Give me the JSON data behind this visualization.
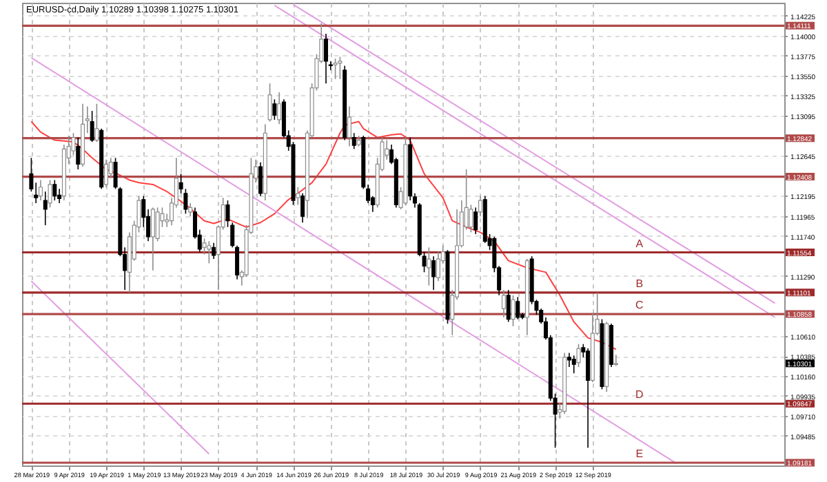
{
  "chart_data": {
    "type": "candlestick",
    "title": "EURUSD-cd,Daily 1.10289 1.10398 1.10275 1.10301",
    "categories": [
      "28 Mar 2019",
      null,
      null,
      null,
      null,
      null,
      null,
      null,
      "9 Apr 2019",
      null,
      null,
      null,
      null,
      null,
      null,
      null,
      "19 Apr 2019",
      null,
      null,
      null,
      null,
      null,
      null,
      null,
      "1 May 2019",
      null,
      null,
      null,
      null,
      null,
      null,
      null,
      "13 May 2019",
      null,
      null,
      null,
      null,
      null,
      null,
      null,
      "23 May 2019",
      null,
      null,
      null,
      null,
      null,
      null,
      null,
      "4 Jun 2019",
      null,
      null,
      null,
      null,
      null,
      null,
      null,
      "14 Jun 2019",
      null,
      null,
      null,
      null,
      null,
      null,
      null,
      "26 Jun 2019",
      null,
      null,
      null,
      null,
      null,
      null,
      null,
      "8 Jul 2019",
      null,
      null,
      null,
      null,
      null,
      null,
      null,
      "18 Jul 2019",
      null,
      null,
      null,
      null,
      null,
      null,
      null,
      "30 Jul 2019",
      null,
      null,
      null,
      null,
      null,
      null,
      null,
      "9 Aug 2019",
      null,
      null,
      null,
      null,
      null,
      null,
      null,
      "21 Aug 2019",
      null,
      null,
      null,
      null,
      null,
      null,
      null,
      "2 Sep 2019",
      null,
      null,
      null,
      null,
      null,
      null,
      null,
      "12 Sep 2019",
      null,
      null,
      null,
      null,
      null,
      null,
      null,
      null,
      null,
      null,
      null,
      null,
      null,
      null,
      null,
      null,
      null,
      null,
      null,
      null,
      null,
      null,
      null,
      null,
      null,
      null,
      null,
      null,
      null,
      null,
      null,
      null,
      null,
      null,
      null,
      null,
      null,
      null,
      null
    ],
    "ohlc": [
      [
        1.1244,
        1.1262,
        1.1224,
        1.1227
      ],
      [
        1.122,
        1.1234,
        1.1211,
        1.1217
      ],
      [
        1.1219,
        1.1237,
        1.1214,
        1.1229
      ],
      [
        1.1214,
        1.1224,
        1.1186,
        1.1204
      ],
      [
        1.1211,
        1.1237,
        1.1206,
        1.1232
      ],
      [
        1.1232,
        1.1237,
        1.1214,
        1.1219
      ],
      [
        1.122,
        1.1227,
        1.1211,
        1.1216
      ],
      [
        1.1219,
        1.1277,
        1.1214,
        1.1272
      ],
      [
        1.1262,
        1.1287,
        1.1255,
        1.1275
      ],
      [
        1.127,
        1.129,
        1.1265,
        1.1285
      ],
      [
        1.1275,
        1.1285,
        1.1249,
        1.1255
      ],
      [
        1.1255,
        1.1323,
        1.1252,
        1.13
      ],
      [
        1.1304,
        1.132,
        1.129,
        1.1306
      ],
      [
        1.1303,
        1.1315,
        1.128,
        1.1282
      ],
      [
        1.1282,
        1.1323,
        1.128,
        1.1295
      ],
      [
        1.1293,
        1.1295,
        1.1227,
        1.1229
      ],
      [
        1.1232,
        1.126,
        1.1229,
        1.1255
      ],
      [
        1.1244,
        1.1262,
        1.1239,
        1.1257
      ],
      [
        1.1257,
        1.1262,
        1.1227,
        1.1229
      ],
      [
        1.1227,
        1.1229,
        1.1151,
        1.1153
      ],
      [
        1.1153,
        1.1161,
        1.1113,
        1.1135
      ],
      [
        1.1133,
        1.1178,
        1.111,
        1.1173
      ],
      [
        1.1148,
        1.1191,
        1.1146,
        1.1186
      ],
      [
        1.1184,
        1.1219,
        1.1178,
        1.1214
      ],
      [
        1.1215,
        1.1219,
        1.1184,
        1.1195
      ],
      [
        1.1196,
        1.1204,
        1.1168,
        1.1173
      ],
      [
        1.1173,
        1.1206,
        1.1135,
        1.1204
      ],
      [
        1.1171,
        1.1206,
        1.1168,
        1.1201
      ],
      [
        1.1191,
        1.1206,
        1.1184,
        1.1199
      ],
      [
        1.119,
        1.1199,
        1.1184,
        1.1192
      ],
      [
        1.1191,
        1.1217,
        1.1186,
        1.1211
      ],
      [
        1.1209,
        1.1262,
        1.1206,
        1.1239
      ],
      [
        1.1234,
        1.1244,
        1.1222,
        1.1227
      ],
      [
        1.1222,
        1.1227,
        1.1199,
        1.1204
      ],
      [
        1.1201,
        1.1211,
        1.1196,
        1.1206
      ],
      [
        1.1201,
        1.1206,
        1.1171,
        1.1173
      ],
      [
        1.1175,
        1.1181,
        1.1156,
        1.1159
      ],
      [
        1.1161,
        1.1171,
        1.1153,
        1.1166
      ],
      [
        1.1159,
        1.1168,
        1.1143,
        1.1163
      ],
      [
        1.1161,
        1.1166,
        1.1148,
        1.1152
      ],
      [
        1.1153,
        1.1186,
        1.1113,
        1.1184
      ],
      [
        1.1184,
        1.1217,
        1.1181,
        1.1209
      ],
      [
        1.1209,
        1.1214,
        1.1184,
        1.1191
      ],
      [
        1.1186,
        1.1189,
        1.1161,
        1.1163
      ],
      [
        1.1161,
        1.1163,
        1.1125,
        1.113
      ],
      [
        1.1128,
        1.1135,
        1.1118,
        1.1133
      ],
      [
        1.113,
        1.1186,
        1.1128,
        1.1181
      ],
      [
        1.1178,
        1.1262,
        1.1176,
        1.1244
      ],
      [
        1.1239,
        1.126,
        1.1234,
        1.1252
      ],
      [
        1.1252,
        1.1257,
        1.1219,
        1.1222
      ],
      [
        1.1222,
        1.13,
        1.1214,
        1.129
      ],
      [
        1.1305,
        1.1346,
        1.1303,
        1.1333
      ],
      [
        1.1323,
        1.1328,
        1.1305,
        1.131
      ],
      [
        1.1305,
        1.1336,
        1.13,
        1.1323
      ],
      [
        1.1325,
        1.1328,
        1.1285,
        1.1287
      ],
      [
        1.1287,
        1.1293,
        1.127,
        1.1275
      ],
      [
        1.1277,
        1.128,
        1.1209,
        1.1214
      ],
      [
        1.1217,
        1.1229,
        1.1209,
        1.1222
      ],
      [
        1.1219,
        1.1222,
        1.1189,
        1.1196
      ],
      [
        1.1214,
        1.1293,
        1.1194,
        1.129
      ],
      [
        1.1287,
        1.1346,
        1.1285,
        1.1341
      ],
      [
        1.1341,
        1.1379,
        1.1338,
        1.1374
      ],
      [
        1.1371,
        1.1414,
        1.1369,
        1.1396
      ],
      [
        1.1396,
        1.1402,
        1.1346,
        1.1371
      ],
      [
        1.1367,
        1.1371,
        1.1361,
        1.1366
      ],
      [
        1.1367,
        1.1374,
        1.1351,
        1.1369
      ],
      [
        1.1369,
        1.1376,
        1.1351,
        1.1371
      ],
      [
        1.1361,
        1.1366,
        1.1282,
        1.1285
      ],
      [
        1.1285,
        1.132,
        1.1275,
        1.1308
      ],
      [
        1.1285,
        1.129,
        1.1272,
        1.1276
      ],
      [
        1.1277,
        1.1287,
        1.1275,
        1.1282
      ],
      [
        1.1285,
        1.1287,
        1.1227,
        1.1229
      ],
      [
        1.1227,
        1.1232,
        1.1211,
        1.1214
      ],
      [
        1.1217,
        1.1219,
        1.1201,
        1.1209
      ],
      [
        1.1209,
        1.1262,
        1.1206,
        1.1255
      ],
      [
        1.1249,
        1.1285,
        1.1247,
        1.128
      ],
      [
        1.1265,
        1.1282,
        1.126,
        1.1272
      ],
      [
        1.1271,
        1.1277,
        1.1255,
        1.1257
      ],
      [
        1.126,
        1.1262,
        1.1206,
        1.1209
      ],
      [
        1.1206,
        1.1229,
        1.1204,
        1.1224
      ],
      [
        1.1211,
        1.1285,
        1.1209,
        1.1277
      ],
      [
        1.1277,
        1.1285,
        1.1214,
        1.1219
      ],
      [
        1.1218,
        1.1222,
        1.1206,
        1.1211
      ],
      [
        1.1209,
        1.1211,
        1.1151,
        1.1153
      ],
      [
        1.1151,
        1.1156,
        1.1133,
        1.114
      ],
      [
        1.1138,
        1.1161,
        1.1118,
        1.1148
      ],
      [
        1.1146,
        1.1151,
        1.1113,
        1.1128
      ],
      [
        1.1127,
        1.1156,
        1.1123,
        1.1148
      ],
      [
        1.1146,
        1.1163,
        1.1143,
        1.1156
      ],
      [
        1.1156,
        1.1158,
        1.1075,
        1.108
      ],
      [
        1.108,
        1.1113,
        1.1062,
        1.1107
      ],
      [
        1.1105,
        1.1204,
        1.1102,
        1.1163
      ],
      [
        1.1163,
        1.1214,
        1.1161,
        1.1201
      ],
      [
        1.1184,
        1.1249,
        1.1181,
        1.1206
      ],
      [
        1.1184,
        1.1209,
        1.1178,
        1.1204
      ],
      [
        1.1201,
        1.1206,
        1.1176,
        1.1181
      ],
      [
        1.1201,
        1.1219,
        1.1196,
        1.1214
      ],
      [
        1.1215,
        1.1219,
        1.1166,
        1.1168
      ],
      [
        1.1171,
        1.1176,
        1.1158,
        1.1163
      ],
      [
        1.1171,
        1.1173,
        1.1133,
        1.1138
      ],
      [
        1.1138,
        1.114,
        1.1107,
        1.1113
      ],
      [
        1.1092,
        1.1113,
        1.1082,
        1.1107
      ],
      [
        1.1107,
        1.1113,
        1.1077,
        1.108
      ],
      [
        1.108,
        1.1107,
        1.1072,
        1.1102
      ],
      [
        1.11,
        1.1105,
        1.108,
        1.1082
      ],
      [
        1.1085,
        1.1087,
        1.108,
        1.1082
      ],
      [
        1.1082,
        1.1148,
        1.1062,
        1.1146
      ],
      [
        1.1148,
        1.1151,
        1.1097,
        1.11
      ],
      [
        1.11,
        1.1102,
        1.1085,
        1.109
      ],
      [
        1.109,
        1.1092,
        1.1075,
        1.1077
      ],
      [
        1.1077,
        1.1082,
        1.1057,
        1.1059
      ],
      [
        1.1059,
        1.1062,
        1.0988,
        1.0991
      ],
      [
        1.0991,
        1.0996,
        1.0935,
        1.0973
      ],
      [
        1.0975,
        1.0986,
        1.0968,
        1.0978
      ],
      [
        1.0976,
        1.1042,
        1.0973,
        1.1037
      ],
      [
        1.1037,
        1.1042,
        1.1026,
        1.1034
      ],
      [
        1.1035,
        1.1039,
        1.1019,
        1.1029
      ],
      [
        1.1031,
        1.1052,
        1.1026,
        1.1047
      ],
      [
        1.1048,
        1.1052,
        1.1037,
        1.1043
      ],
      [
        1.1044,
        1.1047,
        1.0935,
        1.1011
      ],
      [
        1.1011,
        1.1087,
        1.1009,
        1.1064
      ],
      [
        1.1064,
        1.111,
        1.1062,
        1.108
      ],
      [
        1.1075,
        1.108,
        1.1001,
        1.1004
      ],
      [
        1.1004,
        1.1077,
        1.0998,
        1.1075
      ],
      [
        1.1073,
        1.1075,
        1.1026,
        1.1029
      ],
      [
        1.10289,
        1.10398,
        1.10275,
        1.10301
      ],
      null,
      null,
      null,
      null,
      null,
      null,
      null,
      null,
      null,
      null,
      null,
      null,
      null,
      null,
      null,
      null,
      null,
      null,
      null,
      null,
      null,
      null,
      null,
      null,
      null,
      null,
      null,
      null,
      null,
      null,
      null,
      null,
      null,
      null
    ],
    "series": [
      {
        "type": "line",
        "color": "#ff4040",
        "values": [
          1.1303,
          null,
          1.1291,
          null,
          null,
          1.1282,
          null,
          null,
          null,
          1.128,
          null,
          1.1272,
          null,
          1.1262,
          null,
          null,
          1.1249,
          null,
          1.1245,
          null,
          null,
          1.1237,
          null,
          1.1234,
          null,
          null,
          1.1232,
          null,
          null,
          1.1224,
          null,
          null,
          1.1213,
          null,
          1.1205,
          null,
          null,
          1.1191,
          null,
          1.1188,
          null,
          null,
          1.1193,
          null,
          null,
          1.1186,
          1.1184,
          null,
          null,
          1.1189,
          null,
          null,
          1.1199,
          null,
          null,
          1.1215,
          null,
          1.1222,
          null,
          null,
          1.1234,
          null,
          null,
          1.1255,
          null,
          null,
          1.129,
          1.1299,
          null,
          null,
          1.1303,
          1.1295,
          null,
          null,
          1.1285,
          null,
          null,
          1.1288,
          null,
          1.1289,
          null,
          1.1282,
          null,
          null,
          1.1244,
          null,
          null,
          null,
          1.1217,
          null,
          1.1191,
          null,
          null,
          1.1184,
          null,
          null,
          1.1178,
          null,
          null,
          1.1168,
          null,
          null,
          1.1146,
          null,
          null,
          null,
          1.1138,
          null,
          null,
          null,
          1.1133,
          null,
          null,
          1.1107,
          null,
          null,
          1.1077,
          null,
          null,
          1.1059,
          null,
          null,
          1.1054,
          null,
          null,
          1.1046,
          null,
          null,
          null,
          null,
          null,
          null,
          null,
          null,
          null,
          null,
          null,
          null,
          null,
          null,
          null,
          null,
          null,
          null,
          null,
          null,
          null,
          null,
          null,
          null,
          null,
          null,
          null,
          null,
          null,
          null,
          null,
          null,
          null,
          null
        ]
      },
      {
        "type": "line",
        "color": "#e29ee2",
        "values": [
          null,
          null,
          null,
          null,
          null,
          null,
          null,
          null,
          null,
          null,
          null,
          null,
          null,
          null,
          null,
          null,
          null,
          null,
          null,
          null,
          null,
          null,
          null,
          null,
          null,
          null,
          null,
          null,
          null,
          null,
          null,
          null,
          null,
          null,
          null,
          null,
          null,
          null,
          null,
          null,
          null,
          null,
          null,
          null,
          null,
          null,
          null,
          null,
          null,
          null,
          null,
          null,
          1.1434,
          null,
          null,
          null,
          null,
          null,
          null,
          null,
          null,
          null,
          null,
          null,
          null,
          null,
          null,
          null,
          null,
          null,
          null,
          null,
          null,
          null,
          null,
          null,
          null,
          null,
          null,
          null,
          null,
          null,
          null,
          null,
          null,
          null,
          null,
          null,
          null,
          null,
          null,
          null,
          null,
          null,
          null,
          null,
          null,
          null,
          null,
          null,
          null,
          null,
          null,
          null,
          null,
          null,
          null,
          null,
          null,
          null,
          null,
          null,
          null,
          null,
          null,
          null,
          null,
          null,
          null,
          null,
          null,
          null,
          null,
          null,
          null,
          null,
          null,
          null,
          null,
          null,
          null,
          null,
          null,
          null,
          null,
          null,
          null,
          null,
          null,
          null,
          null,
          null,
          null,
          null,
          null,
          null,
          null,
          null,
          null,
          null,
          null,
          null,
          null,
          null,
          null,
          null,
          null,
          null,
          null,
          1.1082
        ]
      },
      {
        "type": "line",
        "color": "#e29ee2",
        "values": [
          null,
          null,
          null,
          null,
          null,
          null,
          null,
          null,
          null,
          null,
          null,
          null,
          null,
          null,
          null,
          null,
          null,
          null,
          null,
          null,
          null,
          null,
          null,
          null,
          null,
          null,
          null,
          null,
          null,
          null,
          null,
          null,
          null,
          null,
          null,
          null,
          null,
          null,
          null,
          null,
          null,
          null,
          null,
          null,
          null,
          null,
          null,
          null,
          null,
          null,
          null,
          null,
          null,
          null,
          null,
          null,
          1.1435,
          null,
          null,
          null,
          null,
          null,
          null,
          null,
          null,
          null,
          null,
          null,
          null,
          null,
          null,
          null,
          null,
          null,
          null,
          null,
          null,
          null,
          null,
          null,
          null,
          null,
          null,
          null,
          null,
          null,
          null,
          null,
          null,
          null,
          null,
          null,
          null,
          null,
          null,
          null,
          null,
          null,
          null,
          null,
          null,
          null,
          null,
          null,
          null,
          null,
          null,
          null,
          null,
          null,
          null,
          null,
          null,
          null,
          null,
          null,
          null,
          null,
          null,
          null,
          null,
          null,
          null,
          null,
          null,
          null,
          null,
          null,
          null,
          null,
          null,
          null,
          null,
          null,
          null,
          null,
          null,
          null,
          null,
          null,
          null,
          null,
          null,
          null,
          null,
          null,
          null,
          null,
          null,
          null,
          null,
          null,
          null,
          null,
          null,
          null,
          null,
          null,
          null,
          1.1098
        ]
      },
      {
        "type": "line",
        "color": "#e29ee2",
        "values": [
          1.1375,
          null,
          null,
          null,
          null,
          null,
          null,
          null,
          null,
          null,
          null,
          null,
          null,
          null,
          null,
          null,
          null,
          null,
          null,
          null,
          null,
          null,
          null,
          null,
          null,
          null,
          null,
          null,
          null,
          null,
          null,
          null,
          null,
          null,
          null,
          null,
          null,
          null,
          null,
          null,
          null,
          null,
          null,
          null,
          null,
          null,
          null,
          null,
          null,
          null,
          null,
          null,
          null,
          null,
          null,
          null,
          null,
          null,
          null,
          null,
          null,
          null,
          null,
          null,
          null,
          null,
          null,
          null,
          null,
          null,
          null,
          null,
          null,
          null,
          null,
          null,
          null,
          null,
          null,
          null,
          null,
          null,
          null,
          null,
          null,
          null,
          null,
          null,
          null,
          null,
          null,
          null,
          null,
          null,
          null,
          null,
          null,
          null,
          null,
          null,
          null,
          null,
          null,
          null,
          null,
          null,
          null,
          null,
          null,
          null,
          null,
          null,
          null,
          null,
          null,
          null,
          null,
          null,
          null,
          null,
          null,
          null,
          null,
          null,
          null,
          null,
          null,
          null,
          null,
          null,
          null,
          null,
          null,
          null,
          null,
          null,
          null,
          null,
          1.0917,
          null,
          null,
          null,
          null,
          null,
          null,
          null,
          null,
          null,
          null,
          null,
          null,
          null,
          null,
          null,
          null,
          null,
          null,
          null,
          null,
          null
        ]
      },
      {
        "type": "line",
        "color": "#e29ee2",
        "values": [
          1.1123,
          null,
          null,
          null,
          null,
          null,
          null,
          null,
          null,
          null,
          null,
          null,
          null,
          null,
          null,
          null,
          null,
          null,
          null,
          null,
          null,
          null,
          null,
          null,
          null,
          null,
          null,
          null,
          null,
          null,
          null,
          null,
          null,
          null,
          null,
          null,
          null,
          null,
          1.0928,
          null,
          null,
          null,
          null,
          null,
          null,
          null,
          null,
          null,
          null,
          null,
          null,
          null,
          null,
          null,
          null,
          null,
          null,
          null,
          null,
          null,
          null,
          null,
          null,
          null,
          null,
          null,
          null,
          null,
          null,
          null,
          null,
          null,
          null,
          null,
          null,
          null,
          null,
          null,
          null,
          null,
          null,
          null,
          null,
          null,
          null,
          null,
          null,
          null,
          null,
          null,
          null,
          null,
          null,
          null,
          null,
          null,
          null,
          null,
          null,
          null,
          null,
          null,
          null,
          null,
          null,
          null,
          null,
          null,
          null,
          null,
          null,
          null,
          null,
          null,
          null,
          null,
          null,
          null,
          null,
          null,
          null,
          null,
          null,
          null,
          null,
          null,
          null,
          null,
          null,
          null,
          null,
          null,
          null,
          null,
          null,
          null,
          null,
          null,
          null,
          null,
          null,
          null,
          null,
          null,
          null,
          null,
          null,
          null,
          null,
          null,
          null,
          null,
          null,
          null,
          null,
          null,
          null,
          null,
          null,
          null
        ]
      }
    ],
    "ylim": [
      1.0915,
      1.1437
    ],
    "yticks": [
      1.14225,
      {
        "value": 1.14,
        "label": "1.14000"
      },
      1.13775,
      {
        "value": 1.1355,
        "label": "1.13550"
      },
      1.13325,
      1.13095,
      1.12645,
      1.12195,
      1.11965,
      {
        "value": 1.1174,
        "label": "1.11740"
      },
      {
        "value": 1.1129,
        "label": "1.11290"
      },
      {
        "value": 1.1061,
        "label": "1.10610"
      },
      1.10385,
      {
        "value": 1.1016,
        "label": "1.10160"
      },
      1.09935,
      {
        "value": 1.0971,
        "label": "1.09710"
      },
      1.09485
    ],
    "ref_lines": [
      {
        "axis": "y",
        "value": 1.14111,
        "label": "1.14111",
        "color": "#b04a4a"
      },
      {
        "axis": "y",
        "value": 1.12842,
        "label": "1.12842",
        "color": "#b04a4a"
      },
      {
        "axis": "y",
        "value": 1.12408,
        "label": "1.12408",
        "color": "#b04a4a"
      },
      {
        "axis": "y",
        "value": 1.11554,
        "label": "1.11554",
        "color": "#9e2a2a"
      },
      {
        "axis": "y",
        "value": 1.11101,
        "label": "1.11101",
        "color": "#9e2a2a"
      },
      {
        "axis": "y",
        "value": 1.10858,
        "label": "1.10858",
        "color": "#b04a4a"
      },
      {
        "axis": "y",
        "value": 1.09847,
        "label": "1.09847",
        "color": "#9e2a2a"
      },
      {
        "axis": "y",
        "value": 1.09181,
        "label": "1.09181",
        "color": "#b04a4a"
      }
    ],
    "annotations": [
      "1.10301",
      {
        "text": "A",
        "y": 1.11554
      },
      {
        "text": "B",
        "y": 1.11101
      },
      {
        "text": "C",
        "y": 1.10858
      },
      {
        "text": "D",
        "y": 1.09847
      },
      {
        "text": "E",
        "y": 1.09181
      }
    ],
    "grid": true
  }
}
